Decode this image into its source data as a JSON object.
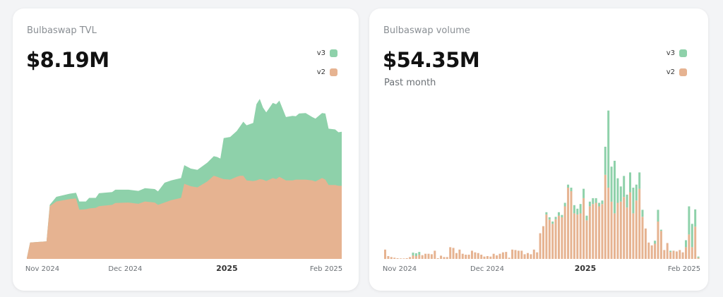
{
  "colors": {
    "v3": "#8ed1aa",
    "v2": "#e6b391"
  },
  "tvl_card": {
    "title": "Bulbaswap TVL",
    "value": "$8.19M",
    "legend": [
      {
        "label": "v3",
        "color": "#8ed1aa"
      },
      {
        "label": "v2",
        "color": "#e6b391"
      }
    ]
  },
  "volume_card": {
    "title": "Bulbaswap volume",
    "value": "$54.35M",
    "subtitle": "Past month",
    "legend": [
      {
        "label": "v3",
        "color": "#8ed1aa"
      },
      {
        "label": "v2",
        "color": "#e6b391"
      }
    ]
  },
  "chart_data": [
    {
      "type": "area",
      "stacked": true,
      "unit": "$M",
      "grid": false,
      "legend_position": "top-right",
      "x_ticks": [
        {
          "label": "Nov 2024",
          "date": "2024-11-01",
          "bold": false
        },
        {
          "label": "Dec 2024",
          "date": "2024-12-01",
          "bold": false
        },
        {
          "label": "2025",
          "date": "2025-01-01",
          "bold": true
        },
        {
          "label": "Feb 2025",
          "date": "2025-02-01",
          "bold": false
        }
      ],
      "x": [
        "2024-11-01",
        "2024-11-02",
        "2024-11-07",
        "2024-11-08",
        "2024-11-10",
        "2024-11-14",
        "2024-11-16",
        "2024-11-17",
        "2024-11-19",
        "2024-11-20",
        "2024-11-22",
        "2024-11-23",
        "2024-11-27",
        "2024-11-28",
        "2024-12-02",
        "2024-12-05",
        "2024-12-07",
        "2024-12-10",
        "2024-12-11",
        "2024-12-13",
        "2024-12-15",
        "2024-12-18",
        "2024-12-19",
        "2024-12-21",
        "2024-12-23",
        "2024-12-26",
        "2024-12-28",
        "2024-12-29",
        "2024-12-30",
        "2024-12-31",
        "2025-01-02",
        "2025-01-04",
        "2025-01-05",
        "2025-01-06",
        "2025-01-07",
        "2025-01-09",
        "2025-01-10",
        "2025-01-11",
        "2025-01-12",
        "2025-01-13",
        "2025-01-15",
        "2025-01-16",
        "2025-01-17",
        "2025-01-19",
        "2025-01-21",
        "2025-01-22",
        "2025-01-23",
        "2025-01-25",
        "2025-01-27",
        "2025-01-28",
        "2025-01-30",
        "2025-01-31",
        "2025-02-01",
        "2025-02-03",
        "2025-02-04",
        "2025-02-05"
      ],
      "series": [
        {
          "name": "v2",
          "values": [
            0.05,
            1.06,
            1.13,
            3.4,
            3.7,
            3.85,
            3.9,
            3.17,
            3.2,
            3.25,
            3.29,
            3.4,
            3.48,
            3.6,
            3.63,
            3.55,
            3.7,
            3.63,
            3.48,
            3.63,
            3.78,
            3.93,
            4.84,
            4.68,
            4.61,
            4.99,
            5.36,
            5.29,
            5.21,
            5.14,
            5.11,
            5.29,
            5.36,
            5.36,
            5.06,
            5.02,
            5.06,
            5.14,
            5.11,
            5.02,
            5.21,
            5.14,
            5.29,
            5.06,
            5.06,
            5.11,
            5.11,
            5.11,
            5.06,
            4.99,
            5.21,
            5.11,
            4.76,
            4.76,
            4.71,
            4.71
          ]
        },
        {
          "name": "v3",
          "values": [
            0,
            0,
            0,
            0.08,
            0.3,
            0.35,
            0.36,
            0.53,
            0.5,
            0.68,
            0.64,
            0.83,
            0.83,
            0.86,
            0.83,
            0.83,
            0.86,
            0.87,
            0.87,
            1.28,
            1.28,
            1.28,
            1.2,
            1.14,
            1.13,
            1.21,
            1.26,
            1.28,
            1.26,
            2.64,
            2.75,
            2.95,
            3.18,
            3.48,
            3.55,
            3.74,
            4.91,
            5.17,
            4.64,
            4.42,
            4.84,
            4.83,
            4.91,
            4.08,
            4.16,
            4.08,
            4.26,
            4.29,
            4.08,
            4.05,
            4.19,
            4.26,
            3.63,
            3.58,
            3.45,
            3.48
          ]
        }
      ],
      "xlim": [
        "2024-11-01",
        "2025-02-05"
      ],
      "ylim": [
        0,
        10.5
      ]
    },
    {
      "type": "bar",
      "stacked": true,
      "grid": false,
      "legend_position": "top-right",
      "x_ticks": [
        {
          "label": "Nov 2024",
          "bold": false
        },
        {
          "label": "Dec 2024",
          "bold": false
        },
        {
          "label": "2025",
          "bold": true
        },
        {
          "label": "Feb 2025",
          "bold": false
        }
      ],
      "series": [
        {
          "name": "v2",
          "values": [
            40,
            12,
            8,
            5,
            3,
            2,
            2,
            3,
            8,
            15,
            12,
            18,
            16,
            22,
            22,
            20,
            35,
            3,
            14,
            8,
            8,
            50,
            47,
            25,
            40,
            22,
            18,
            18,
            35,
            28,
            25,
            18,
            10,
            12,
            10,
            22,
            15,
            22,
            28,
            30,
            5,
            40,
            38,
            35,
            35,
            20,
            25,
            20,
            40,
            28,
            110,
            140,
            190,
            168,
            150,
            170,
            185,
            178,
            225,
            305,
            290,
            195,
            190,
            195,
            260,
            165,
            225,
            235,
            240,
            225,
            235,
            360,
            305,
            245,
            195,
            240,
            245,
            265,
            220,
            285,
            195,
            250,
            300,
            180,
            130,
            70,
            58,
            65,
            160,
            120,
            38,
            68,
            30,
            35,
            32,
            38,
            28,
            50,
            105,
            50,
            138,
            5
          ]
        },
        {
          "name": "v3",
          "values": [
            0,
            0,
            0,
            0,
            0,
            0,
            0,
            0,
            0,
            12,
            12,
            12,
            0,
            0,
            0,
            0,
            0,
            0,
            0,
            0,
            0,
            0,
            0,
            0,
            0,
            0,
            0,
            0,
            0,
            0,
            0,
            0,
            0,
            0,
            0,
            0,
            0,
            0,
            0,
            0,
            0,
            0,
            0,
            0,
            0,
            0,
            0,
            0,
            0,
            0,
            0,
            0,
            10,
            10,
            10,
            10,
            15,
            10,
            15,
            13,
            15,
            35,
            25,
            40,
            40,
            20,
            20,
            25,
            20,
            15,
            15,
            120,
            330,
            150,
            225,
            105,
            65,
            90,
            55,
            85,
            110,
            68,
            70,
            30,
            0,
            0,
            0,
            13,
            50,
            5,
            0,
            0,
            5,
            0,
            0,
            0,
            0,
            30,
            120,
            100,
            74,
            5
          ]
        }
      ],
      "ylim": [
        0,
        640
      ]
    }
  ]
}
